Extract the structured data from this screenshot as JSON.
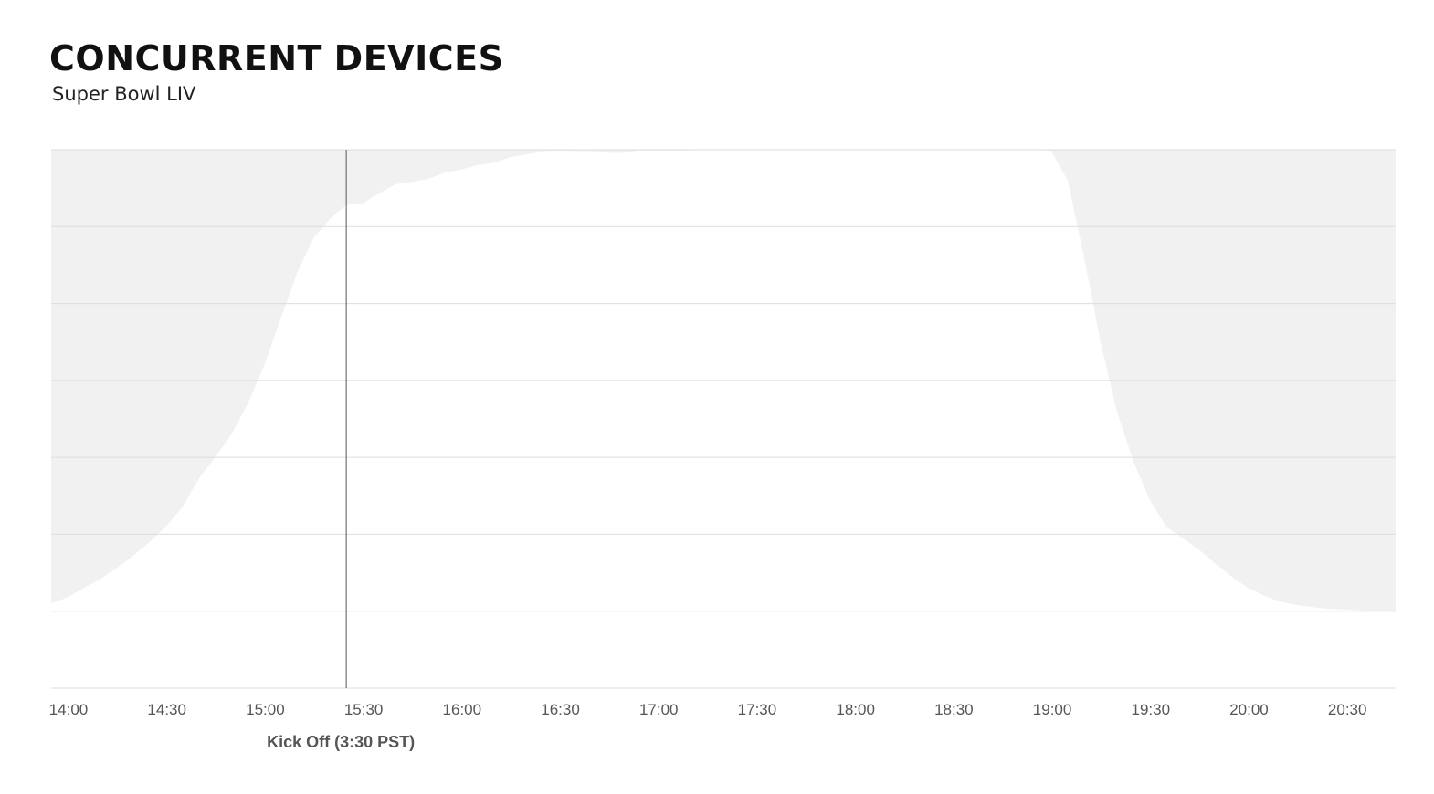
{
  "title": "CONCURRENT DEVICES",
  "subtitle": "Super Bowl LIV",
  "chart_data": {
    "type": "area",
    "title": "CONCURRENT DEVICES",
    "subtitle": "Super Bowl LIV",
    "xlabel": "",
    "ylabel": "",
    "x_unit": "time of day",
    "xlim": [
      "14:00",
      "20:50"
    ],
    "ylim": [
      0,
      7
    ],
    "y_tick_labels_shown": false,
    "grid": true,
    "x_ticks": [
      "14:00",
      "14:30",
      "15:00",
      "15:30",
      "16:00",
      "16:30",
      "17:00",
      "17:30",
      "18:00",
      "18:30",
      "19:00",
      "19:30",
      "20:00",
      "20:30"
    ],
    "annotations": [
      {
        "x": "15:30",
        "label": "Kick Off (3:30 PST)"
      }
    ],
    "series": [
      {
        "x": [
          "14:00",
          "14:05",
          "14:10",
          "14:15",
          "14:20",
          "14:25",
          "14:30",
          "14:35",
          "14:40",
          "14:45",
          "14:50",
          "14:55",
          "15:00",
          "15:05",
          "15:10",
          "15:15",
          "15:20",
          "15:25",
          "15:30",
          "15:35",
          "15:40",
          "15:45",
          "15:50",
          "15:55",
          "16:00",
          "16:05",
          "16:10",
          "16:15",
          "16:20",
          "16:25",
          "16:30",
          "16:35",
          "16:40",
          "16:45",
          "16:50",
          "16:55",
          "17:00",
          "17:05",
          "17:10",
          "17:15",
          "17:20",
          "17:25",
          "17:30",
          "17:35",
          "17:40",
          "17:45",
          "17:50",
          "17:55",
          "18:00",
          "18:05",
          "18:10",
          "18:15",
          "18:20",
          "18:25",
          "18:30",
          "18:35",
          "18:40",
          "18:45",
          "18:50",
          "18:55",
          "19:00",
          "19:02",
          "19:05",
          "19:10",
          "19:15",
          "19:20",
          "19:25",
          "19:30",
          "19:35",
          "19:40",
          "19:45",
          "19:50",
          "19:55",
          "20:00",
          "20:05",
          "20:10",
          "20:15",
          "20:20",
          "20:25",
          "20:30",
          "20:35",
          "20:40",
          "20:45",
          "20:50"
        ],
        "values": [
          1.1,
          1.18,
          1.3,
          1.42,
          1.56,
          1.72,
          1.9,
          2.1,
          2.35,
          2.72,
          3.0,
          3.3,
          3.7,
          4.2,
          4.8,
          5.4,
          5.85,
          6.1,
          6.28,
          6.3,
          6.43,
          6.55,
          6.58,
          6.62,
          6.7,
          6.74,
          6.8,
          6.83,
          6.9,
          6.94,
          6.97,
          6.98,
          6.97,
          6.97,
          6.96,
          6.96,
          6.98,
          6.98,
          6.98,
          6.99,
          7.0,
          7.0,
          7.0,
          7.0,
          7.0,
          7.0,
          7.0,
          7.0,
          7.0,
          7.0,
          7.0,
          7.0,
          7.0,
          7.0,
          7.0,
          7.0,
          7.0,
          7.0,
          7.0,
          7.0,
          7.0,
          7.0,
          6.98,
          6.6,
          5.6,
          4.5,
          3.6,
          2.95,
          2.45,
          2.1,
          1.95,
          1.8,
          1.62,
          1.45,
          1.3,
          1.2,
          1.12,
          1.08,
          1.05,
          1.03,
          1.02,
          1.01,
          1.0,
          1.0
        ]
      }
    ]
  }
}
